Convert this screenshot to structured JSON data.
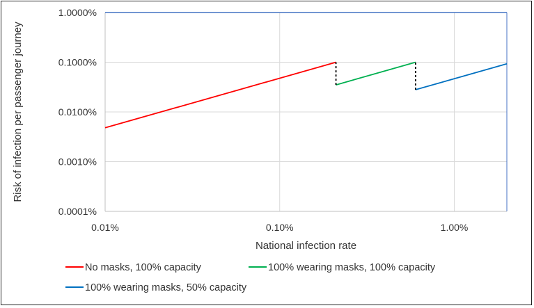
{
  "chart_data": {
    "type": "line",
    "title": "",
    "xlabel": "National infection rate",
    "ylabel": "Risk of infection per passenger journey",
    "x_scale": "log",
    "y_scale": "log",
    "xlim": [
      0.01,
      2.0
    ],
    "ylim": [
      0.0001,
      1.0
    ],
    "x_ticks": [
      {
        "value": 0.01,
        "label": "0.01%"
      },
      {
        "value": 0.1,
        "label": "0.10%"
      },
      {
        "value": 1.0,
        "label": "1.00%"
      }
    ],
    "y_ticks": [
      {
        "value": 0.0001,
        "label": "0.0001%"
      },
      {
        "value": 0.001,
        "label": "0.0010%"
      },
      {
        "value": 0.01,
        "label": "0.0100%"
      },
      {
        "value": 0.1,
        "label": "0.1000%"
      },
      {
        "value": 1.0,
        "label": "1.0000%"
      }
    ],
    "grid": true,
    "legend_position": "bottom",
    "series": [
      {
        "name": "No masks, 100% capacity",
        "color": "#ff0000",
        "x": [
          0.01,
          0.21
        ],
        "y": [
          0.0048,
          0.1
        ]
      },
      {
        "name": "100% wearing masks, 100% capacity",
        "color": "#00b050",
        "x": [
          0.21,
          0.6
        ],
        "y": [
          0.035,
          0.1
        ]
      },
      {
        "name": "100% wearing masks, 50% capacity",
        "color": "#0070c0",
        "x": [
          0.6,
          2.0
        ],
        "y": [
          0.028,
          0.093
        ]
      }
    ],
    "transitions": [
      {
        "x": 0.21,
        "y_from": 0.035,
        "y_to": 0.1,
        "style": "dashed",
        "color": "#000000"
      },
      {
        "x": 0.6,
        "y_from": 0.028,
        "y_to": 0.1,
        "style": "dashed",
        "color": "#000000"
      }
    ],
    "top_border_color": "#4472c4"
  }
}
